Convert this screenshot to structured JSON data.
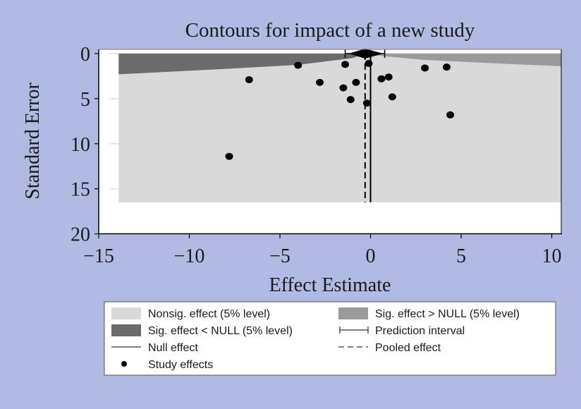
{
  "chart_data": {
    "type": "scatter",
    "title": "Contours for impact of a new study",
    "xlabel": "Effect Estimate",
    "ylabel": "Standard Error",
    "xlim": [
      -15,
      10.5
    ],
    "ylim": [
      0,
      20
    ],
    "y_reversed": true,
    "x_ticks": [
      -15,
      -10,
      -5,
      0,
      5,
      10
    ],
    "x_tick_labels": [
      "−15",
      "−10",
      "−5",
      "0",
      "5",
      "10"
    ],
    "y_ticks": [
      0,
      5,
      10,
      15,
      20
    ],
    "y_tick_labels": [
      "0",
      "5",
      "10",
      "15",
      "20"
    ],
    "grid": true,
    "contour_region": {
      "x_range": [
        -13.9,
        10.5
      ],
      "se_max": 16.5,
      "sig_below_null_boundary": [
        [
          -13.9,
          2.3
        ],
        [
          -9,
          1.8
        ],
        [
          -4,
          1.25
        ],
        [
          -1,
          0.5
        ],
        [
          -0.3,
          0.0
        ]
      ],
      "sig_above_null_boundary": [
        [
          -0.3,
          0.0
        ],
        [
          0.8,
          0.3
        ],
        [
          3,
          0.7
        ],
        [
          7,
          1.1
        ],
        [
          10.5,
          1.4
        ]
      ]
    },
    "pooled_effect": -0.3,
    "pooled_ci": [
      -1.2,
      0.7
    ],
    "prediction_interval": [
      -1.4,
      0.78
    ],
    "null_effect": 0,
    "series": [
      {
        "name": "Study effects",
        "points": [
          {
            "x": -7.8,
            "se": 11.4
          },
          {
            "x": -6.7,
            "se": 2.9
          },
          {
            "x": -4.0,
            "se": 1.3
          },
          {
            "x": -2.8,
            "se": 3.2
          },
          {
            "x": -1.4,
            "se": 1.2
          },
          {
            "x": -1.5,
            "se": 3.8
          },
          {
            "x": -1.1,
            "se": 5.1
          },
          {
            "x": -0.8,
            "se": 3.2
          },
          {
            "x": -0.2,
            "se": 5.5
          },
          {
            "x": -0.1,
            "se": 1.1
          },
          {
            "x": 0.6,
            "se": 2.8
          },
          {
            "x": 1.0,
            "se": 2.6
          },
          {
            "x": 1.2,
            "se": 4.8
          },
          {
            "x": 3.0,
            "se": 1.6
          },
          {
            "x": 4.2,
            "se": 1.5
          },
          {
            "x": 4.4,
            "se": 6.8
          }
        ]
      }
    ],
    "legend": {
      "placement": "bottom",
      "items": [
        {
          "key": "nonsig",
          "label": "Nonsig. effect (5% level)",
          "symbol": "box",
          "color": "#d9d9d9"
        },
        {
          "key": "sig_above",
          "label": "Sig. effect > NULL (5% level)",
          "symbol": "box",
          "color": "#9a9a9a"
        },
        {
          "key": "sig_below",
          "label": "Sig. effect < NULL (5% level)",
          "symbol": "box",
          "color": "#6b6b6b"
        },
        {
          "key": "prediction",
          "label": "Prediction interval",
          "symbol": "interval",
          "color": "#000000"
        },
        {
          "key": "null",
          "label": "Null effect",
          "symbol": "line",
          "color": "#000000"
        },
        {
          "key": "pooled",
          "label": "Pooled effect",
          "symbol": "dash",
          "color": "#000000"
        },
        {
          "key": "studies",
          "label": "Study effects",
          "symbol": "dot",
          "color": "#000000"
        }
      ]
    },
    "colors": {
      "background": "#b0bae3",
      "plot_bg": "#ffffff",
      "nonsig": "#d9d9d9",
      "sig_above": "#9a9a9a",
      "sig_below": "#6b6b6b",
      "marks": "#000000"
    }
  }
}
